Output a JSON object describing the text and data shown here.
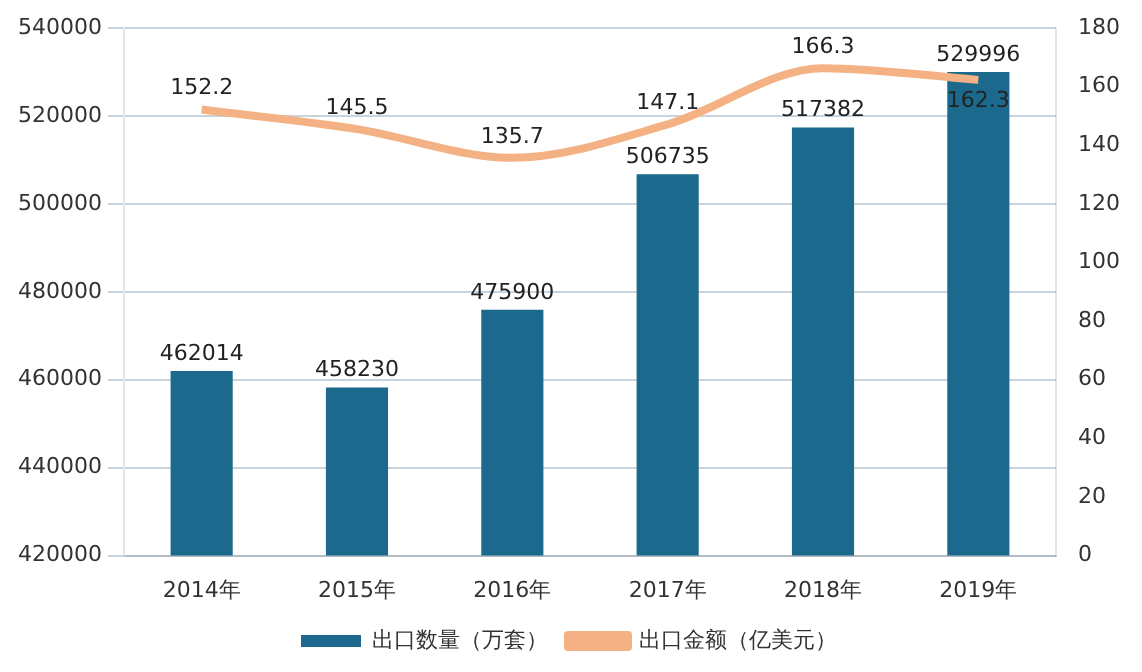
{
  "chart_data": {
    "type": "bar",
    "categories": [
      "2014年",
      "2015年",
      "2016年",
      "2017年",
      "2018年",
      "2019年"
    ],
    "series": [
      {
        "name": "出口数量（万套）",
        "color": "#1b6a8e",
        "values": [
          462014,
          458230,
          475900,
          506735,
          517382,
          529996
        ]
      },
      {
        "name": "出口金额（亿美元）",
        "type": "line",
        "axis": "y2",
        "color": "#f4b183",
        "values": [
          152.2,
          145.5,
          135.7,
          147.1,
          166.3,
          162.3
        ]
      }
    ],
    "ylim": [
      420000,
      540000
    ],
    "yticks": [
      420000,
      440000,
      460000,
      480000,
      500000,
      520000,
      540000
    ],
    "y2lim": [
      0,
      180
    ],
    "y2ticks": [
      0,
      20,
      40,
      60,
      80,
      100,
      120,
      140,
      160,
      180
    ],
    "grid": "y",
    "legend": "bottom",
    "data_labels": true,
    "marker": "none"
  }
}
